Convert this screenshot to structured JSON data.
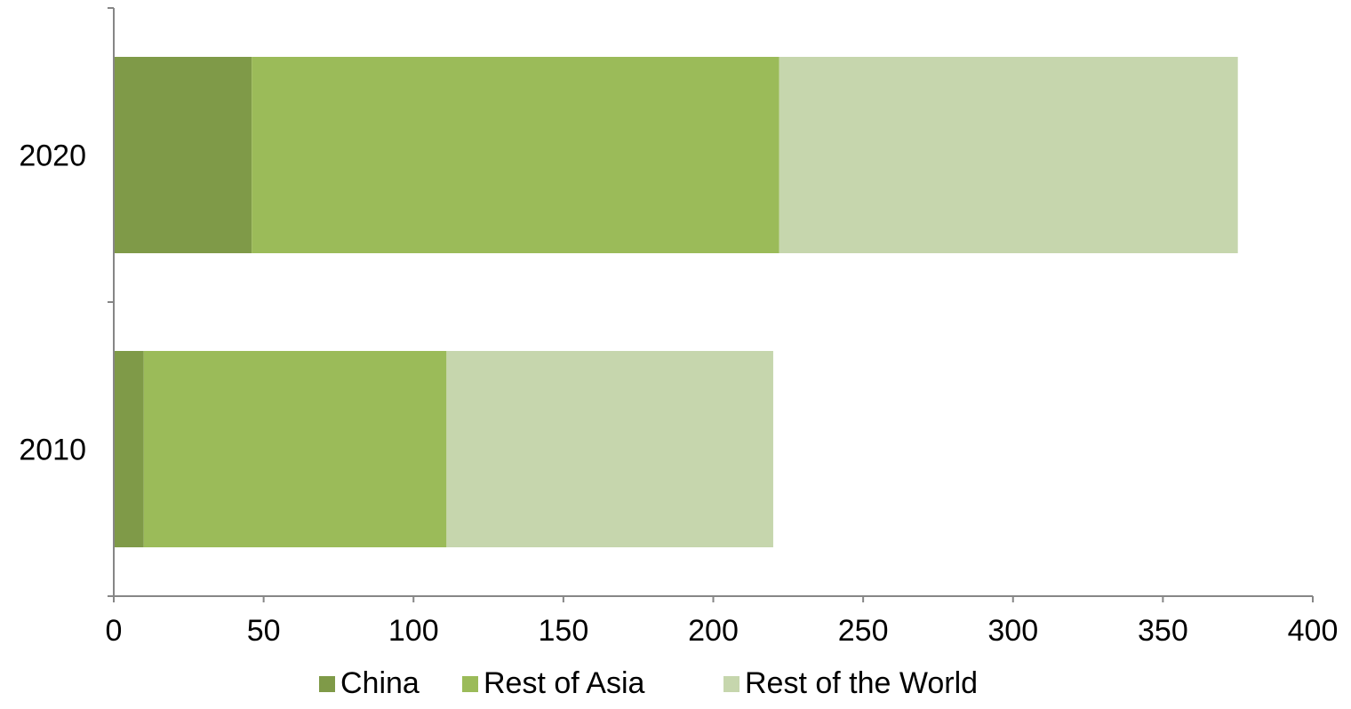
{
  "chart_data": {
    "type": "bar",
    "orientation": "horizontal",
    "stacked": true,
    "categories": [
      "2020",
      "2010"
    ],
    "series": [
      {
        "name": "China",
        "values": [
          46,
          10
        ],
        "color": "#7f9a48"
      },
      {
        "name": "Rest of Asia",
        "values": [
          176,
          101
        ],
        "color": "#9bbb59"
      },
      {
        "name": "Rest of the World",
        "values": [
          153,
          109
        ],
        "color": "#c6d6ad"
      }
    ],
    "x_ticks": [
      "0",
      "50",
      "100",
      "150",
      "200",
      "250",
      "300",
      "350",
      "400"
    ],
    "xlim": [
      0,
      400
    ],
    "title": "",
    "xlabel": "",
    "ylabel": "",
    "grid": false,
    "legend_position": "bottom",
    "axis_color": "#868686"
  }
}
